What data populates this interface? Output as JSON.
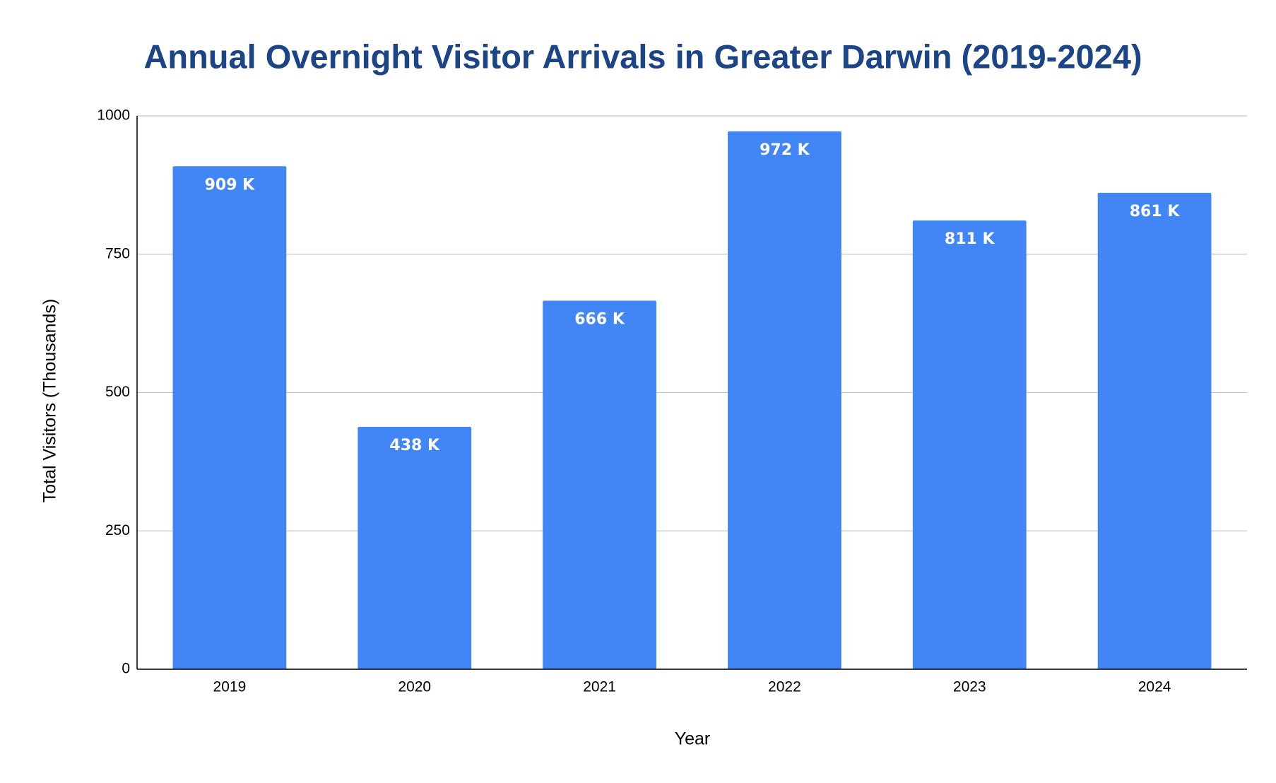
{
  "chart_data": {
    "type": "bar",
    "title": "Annual Overnight Visitor Arrivals in Greater Darwin (2019-2024)",
    "x_label": "Year",
    "y_label": "Total Visitors (Thousands)",
    "categories": [
      "2019",
      "2020",
      "2021",
      "2022",
      "2023",
      "2024"
    ],
    "values": [
      909,
      438,
      666,
      972,
      811,
      861
    ],
    "value_labels": [
      "909 K",
      "438 K",
      "666 K",
      "972 K",
      "811 K",
      "861 K"
    ],
    "color": "#4285f4",
    "ylim": [
      0,
      1000
    ],
    "yticks": [
      0,
      250,
      500,
      750,
      1000
    ],
    "grid": true
  }
}
